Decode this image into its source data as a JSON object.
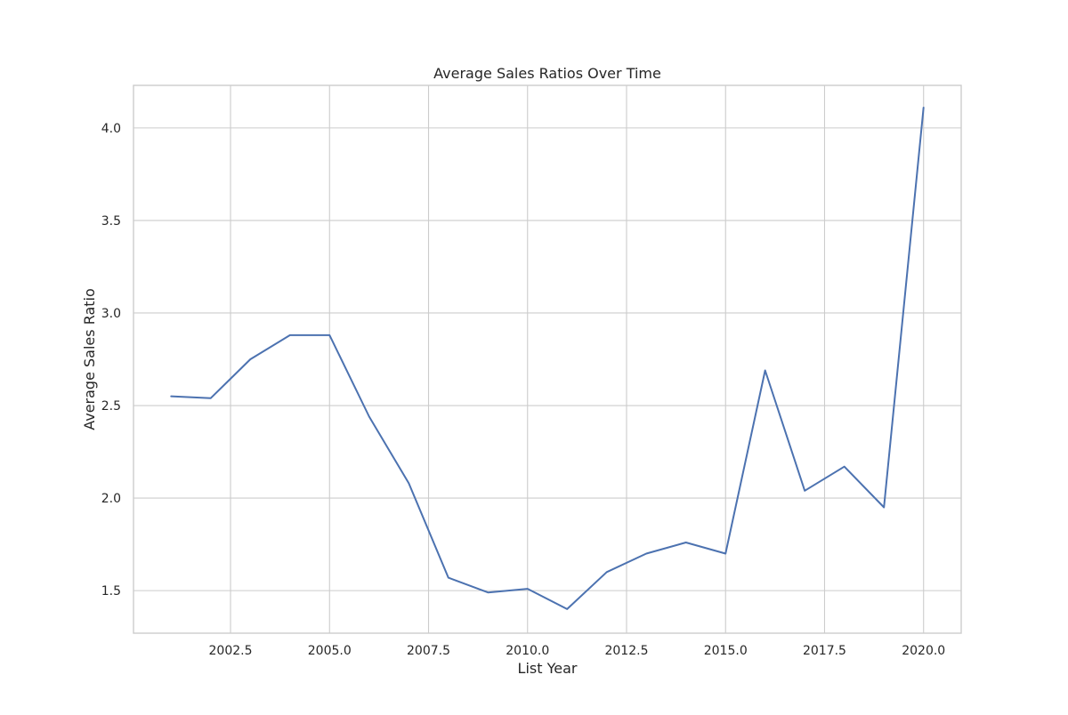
{
  "chart_data": {
    "type": "line",
    "title": "Average Sales Ratios Over Time",
    "xlabel": "List Year",
    "ylabel": "Average Sales Ratio",
    "xlim": [
      2000.05,
      2020.95
    ],
    "ylim": [
      1.27,
      4.23
    ],
    "x_ticks": [
      2002.5,
      2005.0,
      2007.5,
      2010.0,
      2012.5,
      2015.0,
      2017.5,
      2020.0
    ],
    "x_tick_labels": [
      "2002.5",
      "2005.0",
      "2007.5",
      "2010.0",
      "2012.5",
      "2015.0",
      "2017.5",
      "2020.0"
    ],
    "y_ticks": [
      1.5,
      2.0,
      2.5,
      3.0,
      3.5,
      4.0
    ],
    "y_tick_labels": [
      "1.5",
      "2.0",
      "2.5",
      "3.0",
      "3.5",
      "4.0"
    ],
    "grid": true,
    "legend": "none",
    "series": [
      {
        "color": "#4c72b0",
        "x": [
          2001,
          2002,
          2003,
          2004,
          2005,
          2006,
          2007,
          2008,
          2009,
          2010,
          2011,
          2012,
          2013,
          2014,
          2015,
          2016,
          2017,
          2018,
          2019,
          2020
        ],
        "values": [
          2.55,
          2.54,
          2.75,
          2.88,
          2.88,
          2.44,
          2.08,
          1.57,
          1.49,
          1.51,
          1.4,
          1.6,
          1.7,
          1.76,
          1.7,
          2.69,
          2.04,
          2.17,
          1.95,
          4.11
        ]
      }
    ]
  }
}
